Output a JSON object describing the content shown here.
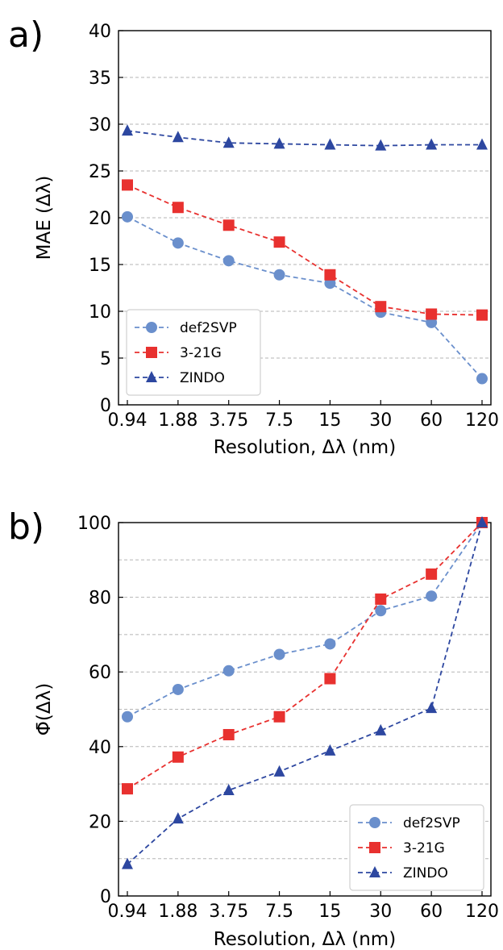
{
  "chart_data": [
    {
      "panel_label": "a)",
      "type": "line",
      "xlabel": "Resolution, Δλ (nm)",
      "ylabel": "MAE (Δλ)",
      "categories": [
        "0.94",
        "1.88",
        "3.75",
        "7.5",
        "15",
        "30",
        "60",
        "120"
      ],
      "ylim": [
        0,
        40
      ],
      "yticks": [
        "0",
        "5",
        "10",
        "15",
        "20",
        "25",
        "30",
        "35",
        "40"
      ],
      "grid": "horizontal dashed",
      "legend_position": "lower-left",
      "series": [
        {
          "name": "def2SVP",
          "marker": "circle",
          "color": "#6a8fcc",
          "values": [
            20.1,
            17.3,
            15.4,
            13.9,
            13.0,
            9.9,
            8.8,
            2.8
          ]
        },
        {
          "name": "3-21G",
          "marker": "square",
          "color": "#e8312f",
          "values": [
            23.5,
            21.1,
            19.2,
            17.4,
            13.9,
            10.5,
            9.7,
            9.6
          ]
        },
        {
          "name": "ZINDO",
          "marker": "triangle",
          "color": "#2d47a0",
          "values": [
            29.3,
            28.6,
            28.0,
            27.9,
            27.8,
            27.7,
            27.8,
            27.8
          ]
        }
      ]
    },
    {
      "panel_label": "b)",
      "type": "line",
      "xlabel": "Resolution, Δλ (nm)",
      "ylabel": "Φ̄(Δλ)",
      "categories": [
        "0.94",
        "1.88",
        "3.75",
        "7.5",
        "15",
        "30",
        "60",
        "120"
      ],
      "ylim": [
        0,
        100
      ],
      "yticks": [
        "0",
        "20",
        "40",
        "60",
        "80",
        "100"
      ],
      "grid": "horizontal dashed",
      "legend_position": "lower-right",
      "series": [
        {
          "name": "def2SVP",
          "marker": "circle",
          "color": "#6a8fcc",
          "values": [
            48.0,
            55.3,
            60.3,
            64.7,
            67.5,
            76.4,
            80.3,
            100.0
          ]
        },
        {
          "name": "3-21G",
          "marker": "square",
          "color": "#e8312f",
          "values": [
            28.7,
            37.2,
            43.2,
            48.0,
            58.2,
            79.5,
            86.2,
            100.0
          ]
        },
        {
          "name": "ZINDO",
          "marker": "triangle",
          "color": "#2d47a0",
          "values": [
            8.5,
            20.7,
            28.3,
            33.3,
            38.9,
            44.3,
            50.3,
            100.0
          ]
        }
      ]
    }
  ]
}
